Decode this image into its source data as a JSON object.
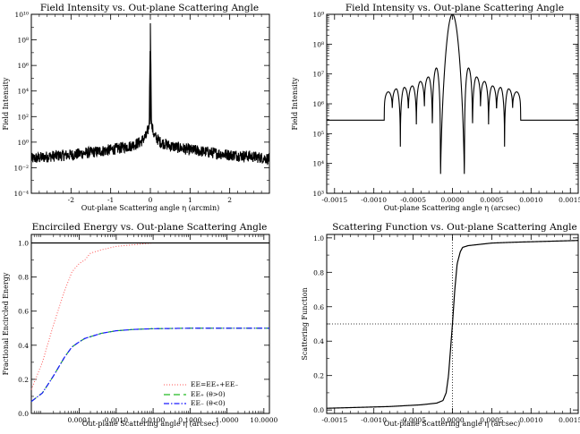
{
  "chart_data": [
    {
      "type": "line",
      "title": "Field Intensity vs. Out-plane Scattering Angle",
      "xlabel": "Out-plane Scattering angle η (arcmin)",
      "ylabel": "Field Intensity",
      "xlim": [
        -3,
        3
      ],
      "ylim_log10": [
        -4,
        10
      ],
      "yscale": "log",
      "xticks": [
        "-2",
        "-1",
        "0",
        "1",
        "2"
      ],
      "xtick_values": [
        -2,
        -1,
        0,
        1,
        2
      ],
      "yticks": [
        "10⁻⁴",
        "10⁻²",
        "10⁰",
        "10²",
        "10⁴",
        "10⁶",
        "10⁸",
        "10¹⁰"
      ],
      "ytick_exponents": [
        -4,
        -2,
        0,
        2,
        4,
        6,
        8,
        10
      ],
      "series": [
        {
          "x": [
            -3.0,
            -2.5,
            -2.0,
            -1.5,
            -1.0,
            -0.5,
            -0.25,
            -0.1,
            -0.03,
            0.0,
            0.03,
            0.1,
            0.25,
            0.5,
            1.0,
            1.5,
            2.0,
            2.5,
            3.0
          ],
          "log10_y": [
            -1.3,
            -1.1,
            -1.0,
            -0.8,
            -0.6,
            -0.3,
            0.0,
            0.5,
            1.3,
            9.3,
            1.3,
            0.5,
            0.0,
            -0.3,
            -0.6,
            -0.8,
            -1.0,
            -1.1,
            -1.3
          ]
        }
      ]
    },
    {
      "type": "line",
      "title": "Field Intensity vs. Out-plane Scattering Angle",
      "xlabel": "Out-plane Scattering angle η (arcsec)",
      "ylabel": "Field Intensity",
      "xlim": [
        -0.0016,
        0.0016
      ],
      "ylim_log10": [
        3,
        9
      ],
      "yscale": "log",
      "xticks": [
        "-0.0015",
        "-0.0010",
        "-0.0005",
        "0.0000",
        "0.0005",
        "0.0010",
        "0.0015"
      ],
      "xtick_values": [
        -0.0015,
        -0.001,
        -0.0005,
        0,
        0.0005,
        0.001,
        0.0015
      ],
      "yticks": [
        "10³",
        "10⁴",
        "10⁵",
        "10⁶",
        "10⁷",
        "10⁸",
        "10⁹"
      ],
      "ytick_exponents": [
        3,
        4,
        5,
        6,
        7,
        8,
        9
      ],
      "lobe_peaks_log10": [
        6.4,
        6.5,
        6.55,
        6.6,
        6.75,
        6.9,
        7.2,
        9.0,
        7.2,
        6.9,
        6.75,
        6.6,
        6.55,
        6.5,
        6.4
      ],
      "null_depths_log10": [
        5.45,
        3.7,
        5.2,
        4.5,
        5.3,
        4.0,
        2.9,
        2.9,
        4.0,
        5.3,
        4.5,
        5.2,
        3.7,
        5.45
      ]
    },
    {
      "type": "line",
      "title": "Encirciled Energy vs. Out-plane Scattering Angle",
      "xlabel": "Out-plane Scattering angle η (arcsec)",
      "ylabel": "Fractional Encircled Energy",
      "xscale": "log",
      "xlim_log10": [
        -5.3,
        1.15
      ],
      "ylim": [
        0.0,
        1.05
      ],
      "xticks": [
        "0.0001",
        "0.0010",
        "0.0100",
        "0.1000",
        "1.0000",
        "10.0000"
      ],
      "xtick_exponents": [
        -4,
        -3,
        -2,
        -1,
        0,
        1
      ],
      "yticks": [
        "0.0",
        "0.2",
        "0.4",
        "0.6",
        "0.8",
        "1.0"
      ],
      "ytick_values": [
        0,
        0.2,
        0.4,
        0.6,
        0.8,
        1.0
      ],
      "legend": [
        "EE=EE₊+EE₋",
        "EE₊ (θ>0)",
        "EE₋ (θ<0)"
      ],
      "legend_position": "bottom-right",
      "colors": [
        "#000000",
        "#ff5555",
        "#22bb22",
        "#1a1aff"
      ],
      "series": [
        {
          "x_log10": [
            -5.3,
            -5.0,
            -4.7,
            -4.4,
            -4.2,
            -4.0,
            -3.85,
            -3.7,
            -3.4,
            -3.0,
            -2.5,
            -2.0,
            -1.0,
            0.0,
            1.15
          ],
          "y": [
            0.14,
            0.3,
            0.52,
            0.72,
            0.83,
            0.88,
            0.9,
            0.94,
            0.96,
            0.98,
            0.99,
            1.0,
            1.0,
            1.0,
            1.0
          ]
        },
        {
          "x_log10": [
            -5.3,
            1.15
          ],
          "y": [
            1.0,
            1.0
          ]
        },
        {
          "x_log10": [
            -5.3,
            -5.0,
            -4.7,
            -4.4,
            -4.2,
            -4.0,
            -3.85,
            -3.7,
            -3.4,
            -3.0,
            -2.5,
            -2.0,
            -1.0,
            0.0,
            1.15
          ],
          "y": [
            0.07,
            0.12,
            0.22,
            0.33,
            0.39,
            0.42,
            0.44,
            0.45,
            0.47,
            0.485,
            0.493,
            0.497,
            0.5,
            0.5,
            0.5
          ]
        }
      ]
    },
    {
      "type": "line",
      "title": "Scattering Function vs. Out-plane Scattering Angle",
      "xlabel": "Out-plane Scattering angle η (arcsec)",
      "ylabel": "Scattering Function",
      "xlim": [
        -0.0016,
        0.0016
      ],
      "ylim": [
        -0.02,
        1.02
      ],
      "xticks": [
        "-0.0015",
        "-0.0010",
        "-0.0005",
        "0.0000",
        "0.0005",
        "0.0010",
        "0.0015"
      ],
      "xtick_values": [
        -0.0015,
        -0.001,
        -0.0005,
        0,
        0.0005,
        0.001,
        0.0015
      ],
      "yticks": [
        "0.0",
        "0.2",
        "0.4",
        "0.6",
        "0.8",
        "1.0"
      ],
      "ytick_values": [
        0,
        0.2,
        0.4,
        0.6,
        0.8,
        1.0
      ],
      "reference_lines": {
        "x": 0.0,
        "y": 0.5
      },
      "series": [
        {
          "x": [
            -0.0016,
            -0.0012,
            -0.0008,
            -0.0004,
            -0.0002,
            -0.00012,
            -8e-05,
            -5e-05,
            -3e-05,
            0.0,
            3e-05,
            6e-05,
            0.0001,
            0.00013,
            0.0002,
            0.0003,
            0.0005,
            0.0008,
            0.0012,
            0.0016
          ],
          "y": [
            0.01,
            0.015,
            0.02,
            0.03,
            0.04,
            0.055,
            0.1,
            0.2,
            0.32,
            0.5,
            0.7,
            0.85,
            0.92,
            0.945,
            0.955,
            0.96,
            0.97,
            0.975,
            0.98,
            0.985
          ]
        }
      ]
    }
  ]
}
